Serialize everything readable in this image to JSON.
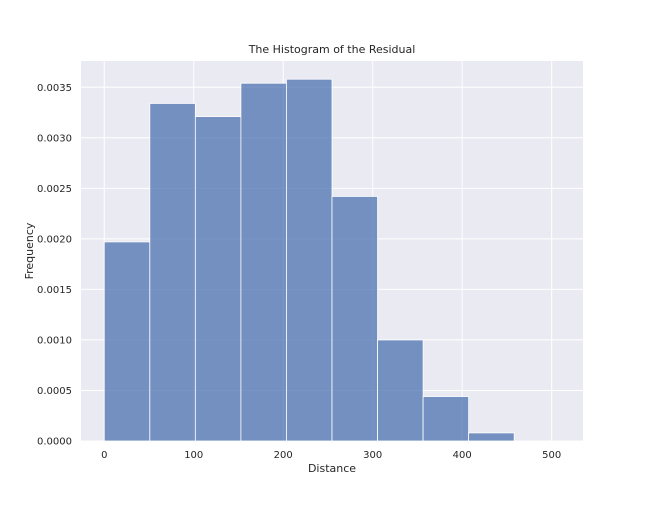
{
  "chart_data": {
    "type": "bar",
    "title": "The Histogram of the Residual",
    "xlabel": "Distance",
    "ylabel": "Frequency",
    "bin_edges": [
      0,
      50.9,
      101.8,
      152.7,
      203.6,
      254.5,
      305.4,
      356.3,
      407.2,
      458.1
    ],
    "values": [
      0.00197,
      0.00334,
      0.00321,
      0.00354,
      0.00358,
      0.00242,
      0.001,
      0.00044,
      8e-05
    ],
    "xlim": [
      -26,
      535
    ],
    "ylim": [
      0,
      0.00376
    ],
    "xticks": [
      0,
      100,
      200,
      300,
      400,
      500
    ],
    "xtick_labels": [
      "0",
      "100",
      "200",
      "300",
      "400",
      "500"
    ],
    "yticks": [
      0,
      0.0005,
      0.001,
      0.0015,
      0.002,
      0.0025,
      0.003,
      0.0035
    ],
    "ytick_labels": [
      "0.0000",
      "0.0005",
      "0.0010",
      "0.0015",
      "0.0020",
      "0.0025",
      "0.0030",
      "0.0035"
    ],
    "grid": true,
    "colors": {
      "bar_fill": "#4c72b0",
      "bar_opacity": 0.75,
      "bar_edge": "#ffffff",
      "axes_bg": "#eaeaf2",
      "grid": "#ffffff"
    }
  }
}
